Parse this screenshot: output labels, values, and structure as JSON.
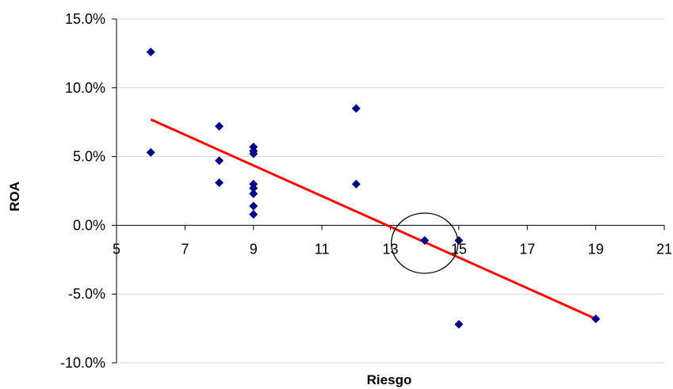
{
  "chart_data": {
    "type": "scatter",
    "title": "",
    "xlabel": "Riesgo",
    "ylabel": "ROA",
    "xlim": [
      5,
      21
    ],
    "ylim": [
      -10,
      15
    ],
    "xticks": [
      5,
      7,
      9,
      11,
      13,
      15,
      17,
      19,
      21
    ],
    "yticks": [
      -10,
      -5,
      0,
      5,
      10,
      15
    ],
    "ytick_labels": [
      "-10.0%",
      "-5.0%",
      "0.0%",
      "5.0%",
      "10.0%",
      "15.0%"
    ],
    "grid": "horizontal",
    "legend": "none",
    "series": [
      {
        "values": [
          [
            6,
            12.6
          ],
          [
            6,
            5.3
          ],
          [
            8,
            7.2
          ],
          [
            8,
            4.7
          ],
          [
            8,
            3.1
          ],
          [
            9,
            5.7
          ],
          [
            9,
            5.4
          ],
          [
            9,
            5.2
          ],
          [
            9,
            3.0
          ],
          [
            9,
            2.7
          ],
          [
            9,
            2.3
          ],
          [
            9,
            1.4
          ],
          [
            9,
            0.8
          ],
          [
            12,
            8.5
          ],
          [
            12,
            3.0
          ],
          [
            14,
            -1.1
          ],
          [
            15,
            -1.1
          ],
          [
            15,
            -7.2
          ],
          [
            19,
            -6.8
          ]
        ],
        "color": "#000080"
      }
    ],
    "trendline": {
      "start": [
        6,
        7.7
      ],
      "end": [
        19,
        -6.8
      ],
      "color": "#ff0000"
    },
    "annotation": {
      "shape": "ellipse",
      "center": [
        14,
        -1.3
      ],
      "description": "circle highlighting point"
    }
  }
}
